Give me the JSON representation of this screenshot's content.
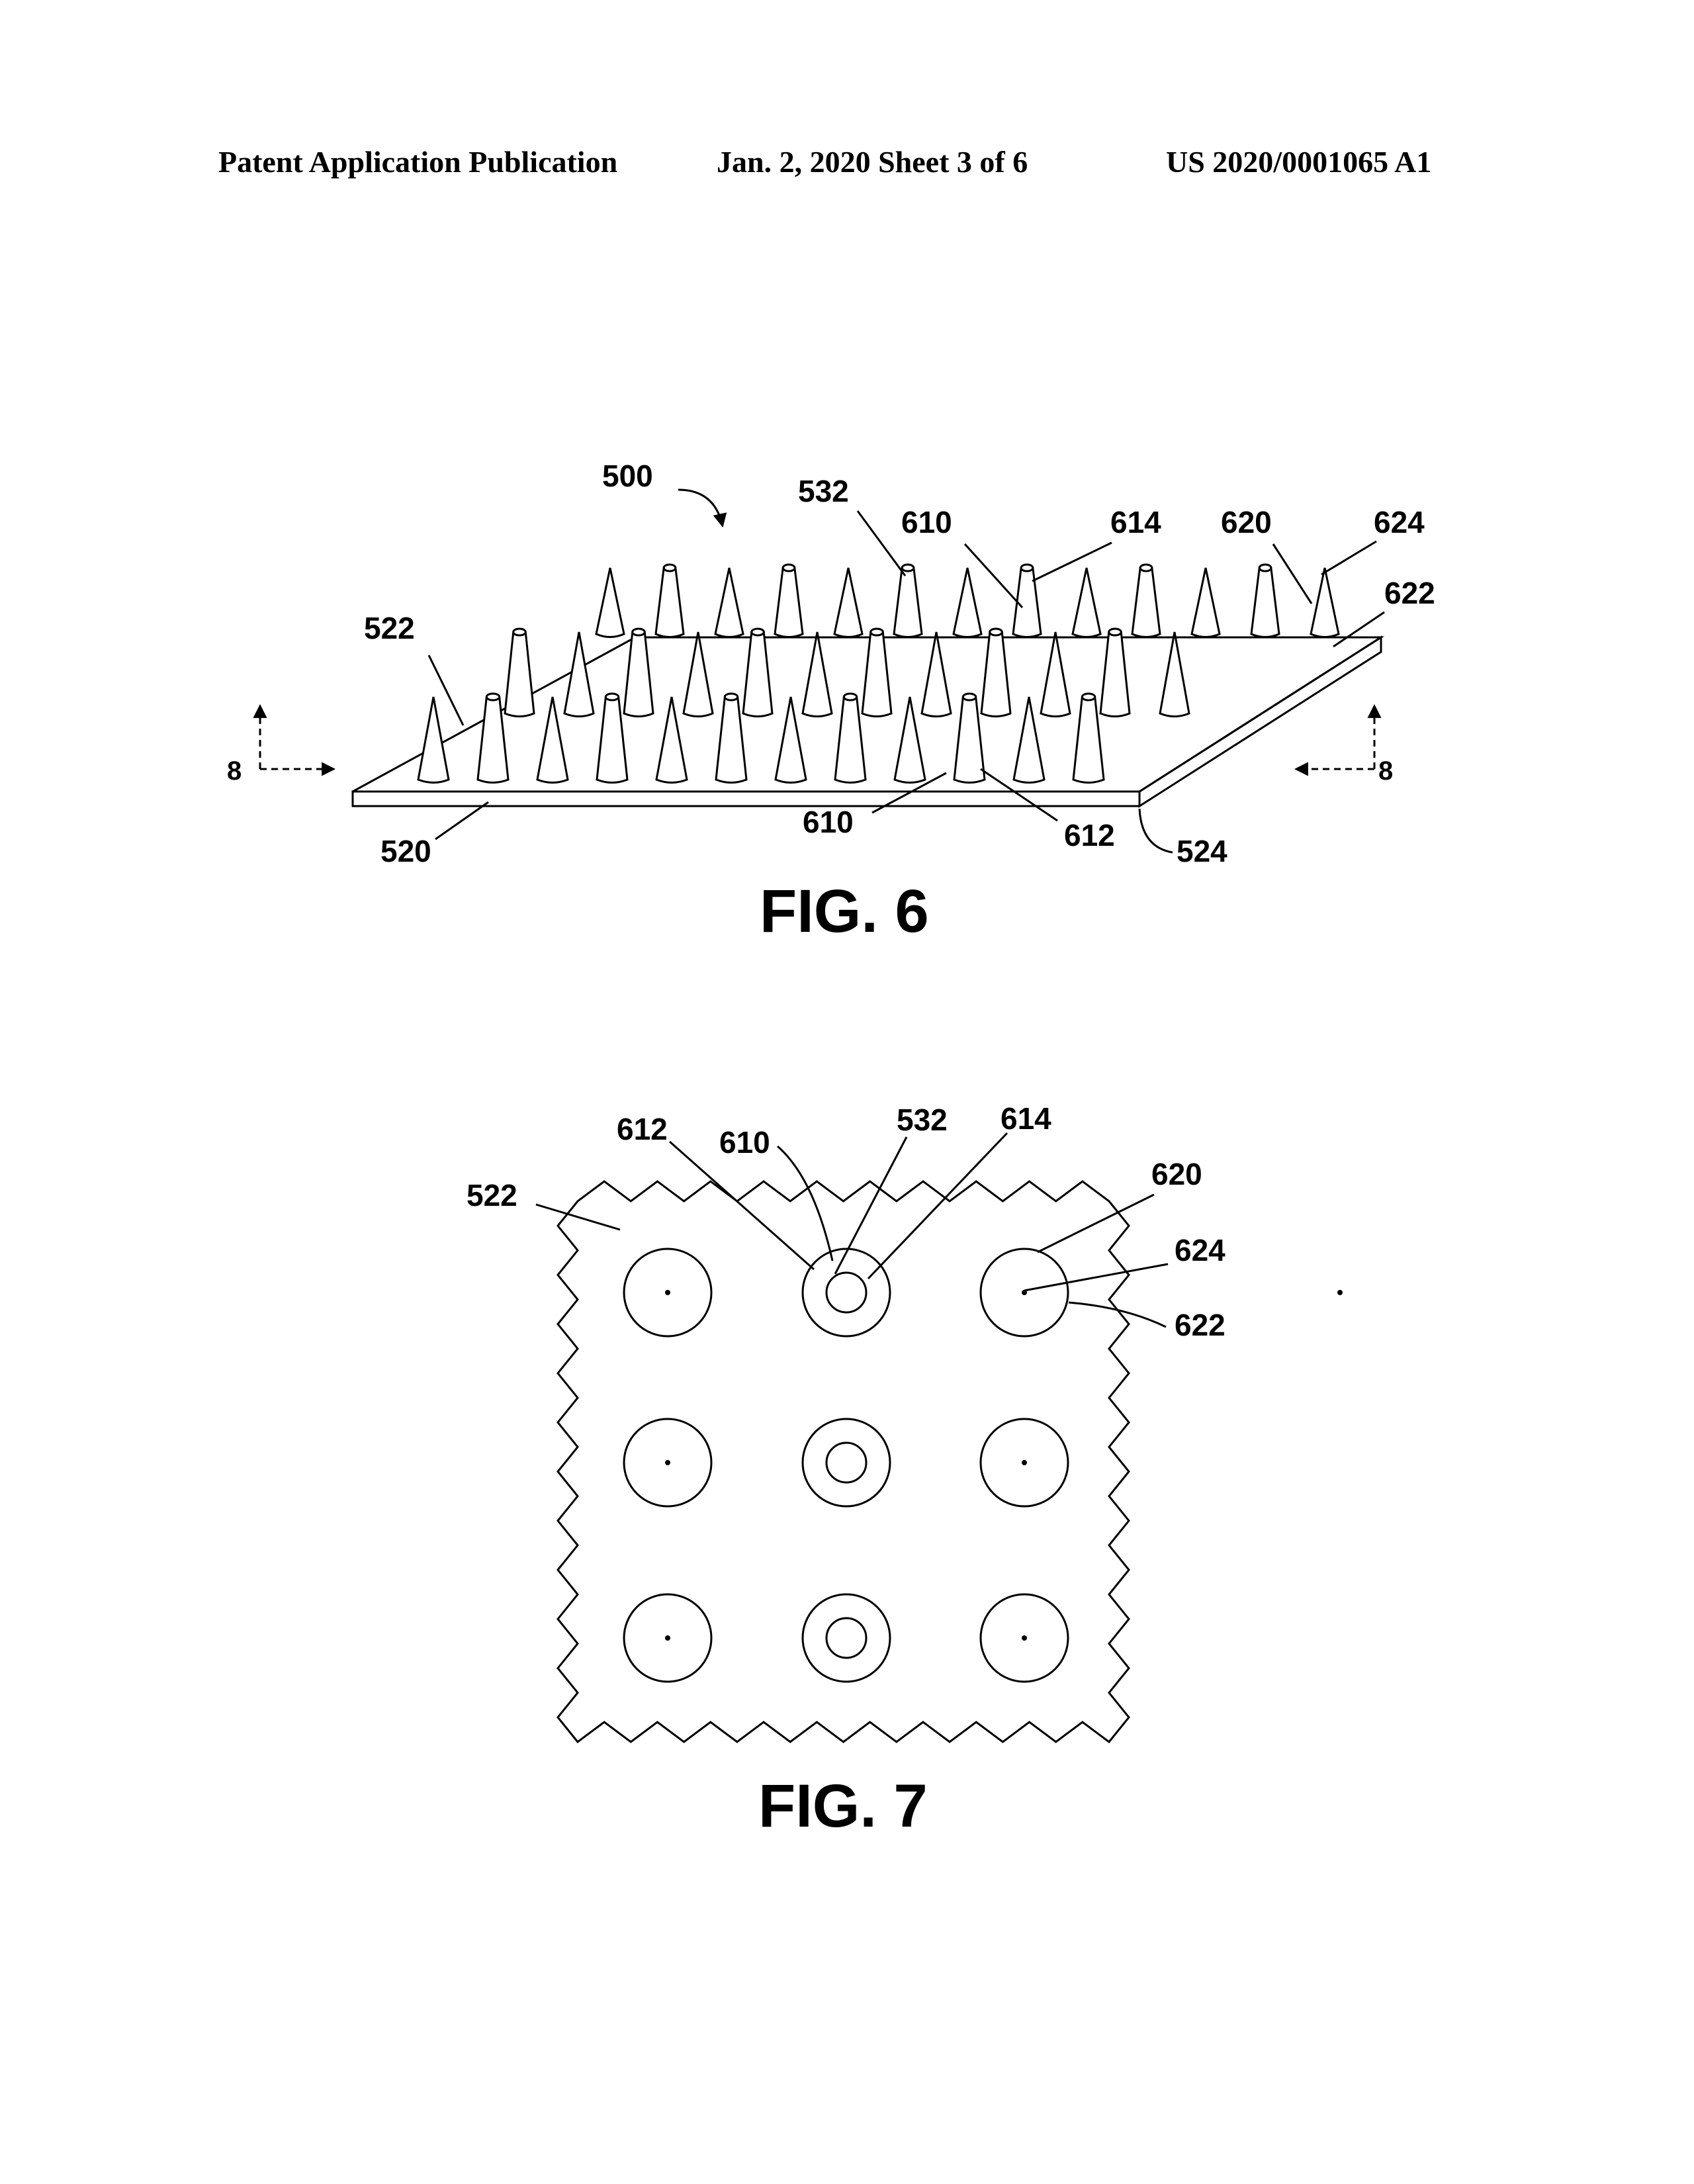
{
  "header": {
    "left": "Patent Application Publication",
    "middle": "Jan. 2, 2020   Sheet 3 of 6",
    "right": "US 2020/0001065 A1"
  },
  "fig6": {
    "caption": "FIG. 6",
    "labels": {
      "l500": "500",
      "l532": "532",
      "l610a": "610",
      "l614": "614",
      "l620": "620",
      "l624": "624",
      "l622": "622",
      "l522": "522",
      "l520": "520",
      "l610b": "610",
      "l612": "612",
      "l524": "524",
      "sec_left": "8",
      "sec_right": "8"
    }
  },
  "fig7": {
    "caption": "FIG. 7",
    "labels": {
      "l612": "612",
      "l610": "610",
      "l532": "532",
      "l614": "614",
      "l620": "620",
      "l522": "522",
      "l624": "624",
      "l622": "622"
    }
  }
}
